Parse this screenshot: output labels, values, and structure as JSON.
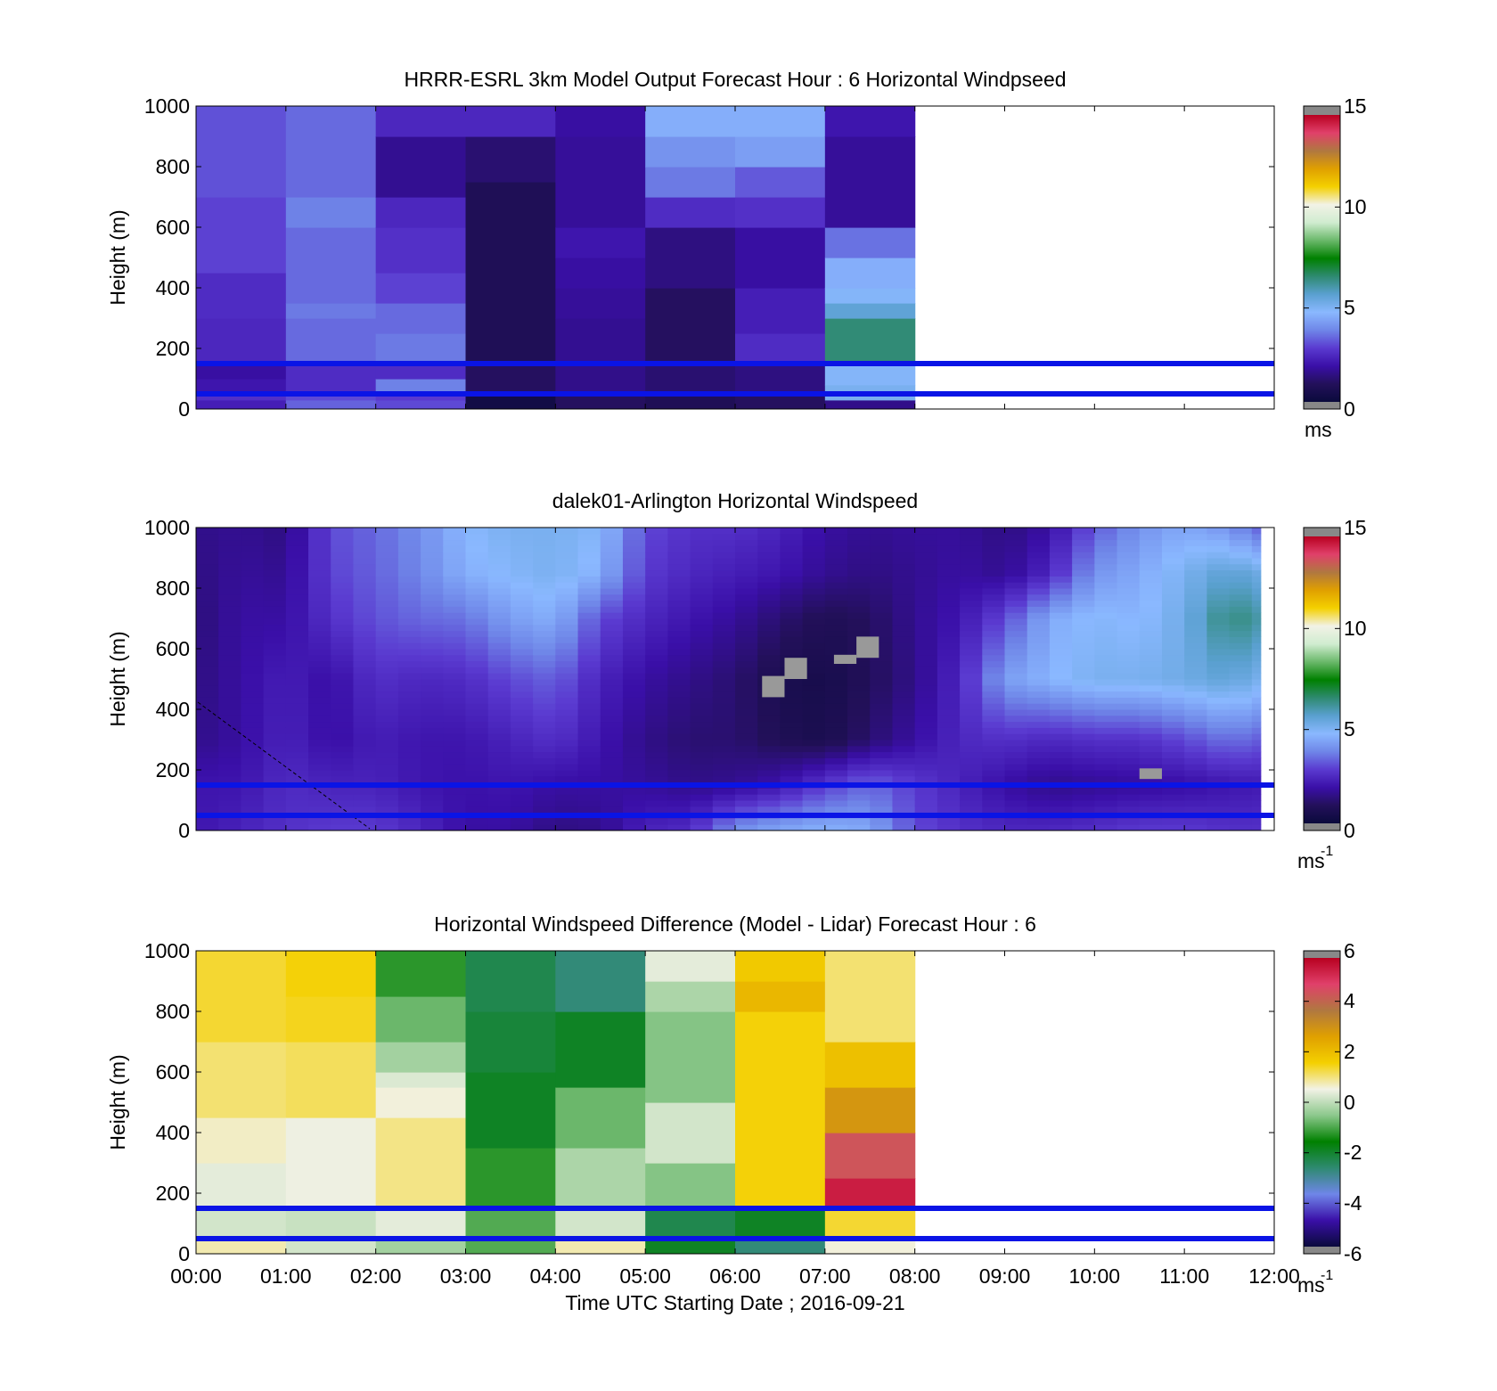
{
  "colors": {
    "windspeed_colormap": [
      "#0a0a3c",
      "#23105a",
      "#3a0fa8",
      "#5a3ad0",
      "#6f86e8",
      "#8ab8ff",
      "#5aa0d0",
      "#2e8a70",
      "#008000",
      "#6ab86a",
      "#d0ecd0",
      "#f2f2e6",
      "#f4d000",
      "#e0a000",
      "#b07840",
      "#e0406a",
      "#b80020"
    ],
    "difference_colormap": [
      "#0a0a3c",
      "#3a0fa8",
      "#6f86e8",
      "#2e8a70",
      "#008000",
      "#8cc88c",
      "#f2f2e6",
      "#f4d000",
      "#e0a000",
      "#b07840",
      "#e0406a",
      "#b80020"
    ],
    "reference_line": "#0a14e6",
    "missing": "#999999"
  },
  "chart_data": [
    {
      "type": "heatmap",
      "title": "HRRR-ESRL 3km Model Output   Forecast Hour : 6 Horizontal Windpseed",
      "xlabel": "",
      "ylabel": "Height (m)",
      "xlim": [
        0,
        12
      ],
      "ylim": [
        0,
        1000
      ],
      "yticks": [
        "0",
        "200",
        "400",
        "600",
        "800",
        "1000"
      ],
      "colorbar": {
        "ticks": [
          "0",
          "5",
          "10",
          "15"
        ],
        "range": [
          0,
          15
        ],
        "unit": "ms"
      },
      "reference_lines_m": [
        150,
        50
      ],
      "columns": [
        {
          "hour": 0,
          "bins": [
            [
              0,
              30,
              2.2
            ],
            [
              30,
              60,
              2.6
            ],
            [
              60,
              100,
              2.0
            ],
            [
              100,
              150,
              1.8
            ],
            [
              150,
              300,
              2.4
            ],
            [
              300,
              450,
              2.5
            ],
            [
              450,
              700,
              2.9
            ],
            [
              700,
              1000,
              3.1
            ]
          ]
        },
        {
          "hour": 1,
          "bins": [
            [
              0,
              30,
              3.3
            ],
            [
              30,
              60,
              3.0
            ],
            [
              60,
              150,
              2.5
            ],
            [
              150,
              300,
              3.4
            ],
            [
              300,
              350,
              3.6
            ],
            [
              350,
              600,
              3.4
            ],
            [
              600,
              700,
              3.7
            ],
            [
              700,
              1000,
              3.4
            ]
          ]
        },
        {
          "hour": 2,
          "bins": [
            [
              0,
              30,
              3.0
            ],
            [
              30,
              60,
              2.8
            ],
            [
              60,
              100,
              3.7
            ],
            [
              100,
              150,
              2.5
            ],
            [
              150,
              250,
              3.6
            ],
            [
              250,
              350,
              3.4
            ],
            [
              350,
              450,
              2.9
            ],
            [
              450,
              600,
              2.6
            ],
            [
              600,
              700,
              2.4
            ],
            [
              700,
              900,
              1.6
            ],
            [
              900,
              1000,
              2.4
            ]
          ]
        },
        {
          "hour": 3,
          "bins": [
            [
              0,
              50,
              0.3
            ],
            [
              50,
              150,
              1.0
            ],
            [
              150,
              750,
              0.8
            ],
            [
              750,
              900,
              1.2
            ],
            [
              900,
              1000,
              2.4
            ]
          ]
        },
        {
          "hour": 4,
          "bins": [
            [
              0,
              50,
              1.0
            ],
            [
              50,
              150,
              1.5
            ],
            [
              150,
              300,
              1.6
            ],
            [
              300,
              400,
              1.7
            ],
            [
              400,
              500,
              1.8
            ],
            [
              500,
              600,
              2.0
            ],
            [
              600,
              900,
              1.7
            ],
            [
              900,
              1000,
              1.8
            ]
          ]
        },
        {
          "hour": 5,
          "bins": [
            [
              0,
              50,
              0.8
            ],
            [
              50,
              150,
              1.2
            ],
            [
              150,
              400,
              1.0
            ],
            [
              400,
              600,
              1.4
            ],
            [
              600,
              700,
              2.5
            ],
            [
              700,
              800,
              3.6
            ],
            [
              800,
              900,
              4.0
            ],
            [
              900,
              1000,
              4.5
            ]
          ]
        },
        {
          "hour": 6,
          "bins": [
            [
              0,
              50,
              1.0
            ],
            [
              50,
              150,
              1.4
            ],
            [
              150,
              250,
              2.5
            ],
            [
              250,
              400,
              2.2
            ],
            [
              400,
              600,
              1.8
            ],
            [
              600,
              700,
              2.6
            ],
            [
              700,
              800,
              3.2
            ],
            [
              800,
              900,
              4.2
            ],
            [
              900,
              1000,
              4.5
            ]
          ]
        },
        {
          "hour": 7,
          "bins": [
            [
              0,
              30,
              1.5
            ],
            [
              30,
              80,
              5.0
            ],
            [
              80,
              150,
              4.8
            ],
            [
              150,
              300,
              6.5
            ],
            [
              300,
              350,
              5.5
            ],
            [
              350,
              400,
              4.8
            ],
            [
              400,
              500,
              4.5
            ],
            [
              500,
              600,
              3.5
            ],
            [
              600,
              900,
              1.7
            ],
            [
              900,
              1000,
              2.0
            ]
          ]
        }
      ]
    },
    {
      "type": "heatmap",
      "title": "dalek01-Arlington  Horizontal Windspeed",
      "xlabel": "",
      "ylabel": "Height (m)",
      "xlim": [
        0,
        12
      ],
      "ylim": [
        0,
        1000
      ],
      "yticks": [
        "0",
        "200",
        "400",
        "600",
        "800",
        "1000"
      ],
      "colorbar": {
        "ticks": [
          "0",
          "5",
          "10",
          "15"
        ],
        "range": [
          0,
          15
        ],
        "unit": "ms",
        "unit_superscript": "-1"
      },
      "reference_lines_m": [
        150,
        50
      ],
      "time_resolution_h": 0.25,
      "data_extent_h": [
        0,
        11.85
      ],
      "profile_knots_height_m": [
        0,
        150,
        300,
        500,
        700,
        850,
        1000
      ],
      "profiles": [
        {
          "t": 0.0,
          "v": [
            2.0,
            2.0,
            1.5,
            1.4,
            1.3,
            1.4,
            1.5
          ]
        },
        {
          "t": 0.5,
          "v": [
            2.3,
            2.0,
            1.8,
            1.8,
            1.8,
            1.7,
            1.6
          ]
        },
        {
          "t": 1.0,
          "v": [
            2.6,
            2.5,
            2.3,
            2.2,
            1.8,
            1.6,
            1.4
          ]
        },
        {
          "t": 1.5,
          "v": [
            2.8,
            2.3,
            1.8,
            1.8,
            2.6,
            2.9,
            3.0
          ]
        },
        {
          "t": 2.0,
          "v": [
            2.8,
            2.3,
            2.2,
            2.6,
            3.1,
            3.3,
            3.4
          ]
        },
        {
          "t": 2.5,
          "v": [
            2.4,
            2.0,
            2.0,
            2.4,
            3.4,
            3.8,
            3.9
          ]
        },
        {
          "t": 3.0,
          "v": [
            1.8,
            1.9,
            2.0,
            2.5,
            3.5,
            4.5,
            4.7
          ]
        },
        {
          "t": 3.5,
          "v": [
            1.8,
            2.0,
            2.3,
            3.0,
            4.2,
            4.8,
            5.0
          ]
        },
        {
          "t": 4.0,
          "v": [
            1.4,
            1.8,
            2.6,
            3.3,
            4.5,
            5.0,
            5.0
          ]
        },
        {
          "t": 4.5,
          "v": [
            1.5,
            1.8,
            2.0,
            2.3,
            3.0,
            4.5,
            4.8
          ]
        },
        {
          "t": 5.0,
          "v": [
            2.3,
            1.7,
            1.5,
            1.8,
            2.4,
            2.8,
            3.0
          ]
        },
        {
          "t": 5.5,
          "v": [
            2.5,
            1.5,
            1.2,
            1.5,
            2.0,
            2.4,
            2.6
          ]
        },
        {
          "t": 6.0,
          "v": [
            4.0,
            1.6,
            1.2,
            1.2,
            1.7,
            2.2,
            2.6
          ]
        },
        {
          "t": 6.5,
          "v": [
            4.4,
            2.0,
            0.8,
            0.6,
            1.2,
            2.0,
            2.3
          ]
        },
        {
          "t": 7.0,
          "v": [
            4.6,
            2.8,
            0.6,
            0.5,
            0.8,
            1.6,
            1.8
          ]
        },
        {
          "t": 7.5,
          "v": [
            4.4,
            3.4,
            1.2,
            0.9,
            1.0,
            1.4,
            1.6
          ]
        },
        {
          "t": 8.0,
          "v": [
            3.0,
            2.8,
            1.8,
            1.5,
            1.6,
            1.6,
            1.7
          ]
        },
        {
          "t": 8.5,
          "v": [
            2.6,
            2.3,
            2.4,
            2.4,
            2.0,
            1.8,
            1.7
          ]
        },
        {
          "t": 9.0,
          "v": [
            2.4,
            1.8,
            2.6,
            4.2,
            3.0,
            1.6,
            1.4
          ]
        },
        {
          "t": 9.5,
          "v": [
            2.4,
            1.5,
            2.4,
            4.6,
            4.4,
            2.4,
            1.8
          ]
        },
        {
          "t": 10.0,
          "v": [
            2.6,
            1.6,
            2.6,
            5.0,
            4.8,
            4.0,
            3.2
          ]
        },
        {
          "t": 10.5,
          "v": [
            2.8,
            1.7,
            2.6,
            5.0,
            4.6,
            4.4,
            4.0
          ]
        },
        {
          "t": 11.0,
          "v": [
            2.8,
            1.8,
            3.0,
            5.2,
            5.2,
            5.0,
            4.4
          ]
        },
        {
          "t": 11.5,
          "v": [
            2.6,
            2.0,
            3.5,
            5.5,
            6.5,
            5.6,
            4.0
          ]
        },
        {
          "t": 11.85,
          "v": [
            2.6,
            2.1,
            3.2,
            5.0,
            6.0,
            5.2,
            3.2
          ]
        }
      ],
      "missing_cells": [
        {
          "t0": 6.3,
          "t1": 6.55,
          "h0": 440,
          "h1": 510
        },
        {
          "t0": 6.55,
          "t1": 6.8,
          "h0": 500,
          "h1": 570
        },
        {
          "t0": 7.1,
          "t1": 7.35,
          "h0": 550,
          "h1": 580
        },
        {
          "t0": 7.35,
          "t1": 7.6,
          "h0": 570,
          "h1": 640
        },
        {
          "t0": 10.5,
          "t1": 10.75,
          "h0": 170,
          "h1": 205
        }
      ]
    },
    {
      "type": "heatmap",
      "title": "Horizontal Windspeed Difference (Model - Lidar) Forecast Hour : 6",
      "xlabel": "Time UTC  Starting Date ; 2016-09-21",
      "ylabel": "Height (m)",
      "xlim": [
        0,
        12
      ],
      "ylim": [
        0,
        1000
      ],
      "xticks": [
        "00:00",
        "01:00",
        "02:00",
        "03:00",
        "04:00",
        "05:00",
        "06:00",
        "07:00",
        "08:00",
        "09:00",
        "10:00",
        "11:00",
        "12:00"
      ],
      "yticks": [
        "0",
        "200",
        "400",
        "600",
        "800",
        "1000"
      ],
      "colorbar": {
        "ticks": [
          "-6",
          "-4",
          "-2",
          "0",
          "2",
          "4",
          "6"
        ],
        "range": [
          -6,
          6
        ],
        "unit": "ms",
        "unit_superscript": "-1"
      },
      "reference_lines_m": [
        150,
        50
      ],
      "columns": [
        {
          "hour": 0,
          "bins": [
            [
              0,
              50,
              0.8
            ],
            [
              50,
              150,
              0.2
            ],
            [
              150,
              300,
              0.4
            ],
            [
              300,
              450,
              0.7
            ],
            [
              450,
              700,
              1.1
            ],
            [
              700,
              1000,
              1.4
            ]
          ]
        },
        {
          "hour": 1,
          "bins": [
            [
              0,
              50,
              0.2
            ],
            [
              50,
              150,
              0.1
            ],
            [
              150,
              450,
              0.5
            ],
            [
              450,
              700,
              1.2
            ],
            [
              700,
              850,
              1.5
            ],
            [
              850,
              1000,
              1.6
            ]
          ]
        },
        {
          "hour": 2,
          "bins": [
            [
              0,
              50,
              -0.3
            ],
            [
              50,
              150,
              0.4
            ],
            [
              150,
              450,
              1.0
            ],
            [
              450,
              550,
              0.6
            ],
            [
              550,
              600,
              0.3
            ],
            [
              600,
              700,
              -0.3
            ],
            [
              700,
              850,
              -0.8
            ],
            [
              850,
              1000,
              -1.3
            ]
          ]
        },
        {
          "hour": 3,
          "bins": [
            [
              0,
              150,
              -1.0
            ],
            [
              150,
              350,
              -1.3
            ],
            [
              350,
              600,
              -2.0
            ],
            [
              600,
              800,
              -2.2
            ],
            [
              800,
              1000,
              -2.4
            ]
          ]
        },
        {
          "hour": 4,
          "bins": [
            [
              0,
              50,
              0.8
            ],
            [
              50,
              150,
              0.2
            ],
            [
              150,
              350,
              -0.2
            ],
            [
              350,
              550,
              -0.8
            ],
            [
              550,
              800,
              -2.0
            ],
            [
              800,
              1000,
              -2.8
            ]
          ]
        },
        {
          "hour": 5,
          "bins": [
            [
              0,
              50,
              -2.0
            ],
            [
              50,
              150,
              -2.4
            ],
            [
              150,
              300,
              -0.6
            ],
            [
              300,
              500,
              0.2
            ],
            [
              500,
              800,
              -0.6
            ],
            [
              800,
              900,
              -0.2
            ],
            [
              900,
              1000,
              0.4
            ]
          ]
        },
        {
          "hour": 6,
          "bins": [
            [
              0,
              50,
              -2.8
            ],
            [
              50,
              150,
              -2.0
            ],
            [
              150,
              800,
              1.6
            ],
            [
              800,
              900,
              2.2
            ],
            [
              900,
              1000,
              1.8
            ]
          ]
        },
        {
          "hour": 7,
          "bins": [
            [
              0,
              50,
              0.6
            ],
            [
              50,
              150,
              1.4
            ],
            [
              150,
              250,
              5.5
            ],
            [
              250,
              400,
              4.5
            ],
            [
              400,
              550,
              3.0
            ],
            [
              550,
              700,
              2.0
            ],
            [
              700,
              1000,
              1.1
            ]
          ]
        }
      ]
    }
  ]
}
